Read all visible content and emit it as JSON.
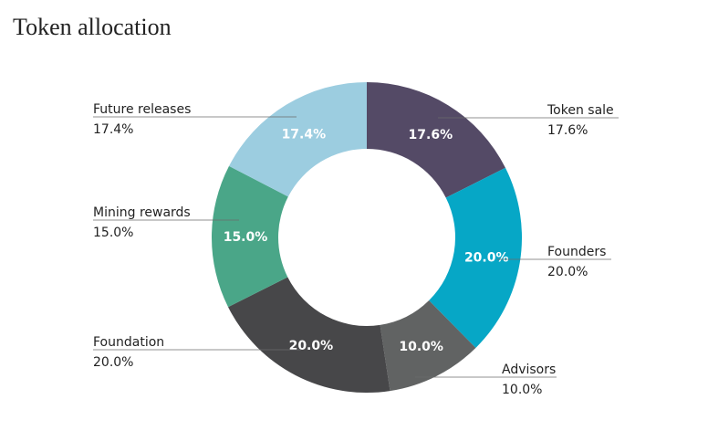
{
  "chart_data": {
    "type": "pie",
    "title": "Token allocation",
    "donut": true,
    "slices": [
      {
        "label": "Token sale",
        "value": 17.6,
        "display": "17.6%",
        "color": "#544a66"
      },
      {
        "label": "Founders",
        "value": 20.0,
        "display": "20.0%",
        "color": "#06a7c6"
      },
      {
        "label": "Advisors",
        "value": 10.0,
        "display": "10.0%",
        "color": "#616363"
      },
      {
        "label": "Foundation",
        "value": 20.0,
        "display": "20.0%",
        "color": "#474749"
      },
      {
        "label": "Mining rewards",
        "value": 15.0,
        "display": "15.0%",
        "color": "#4aa688"
      },
      {
        "label": "Future releases",
        "value": 17.4,
        "display": "17.4%",
        "color": "#9ccde0"
      }
    ]
  }
}
